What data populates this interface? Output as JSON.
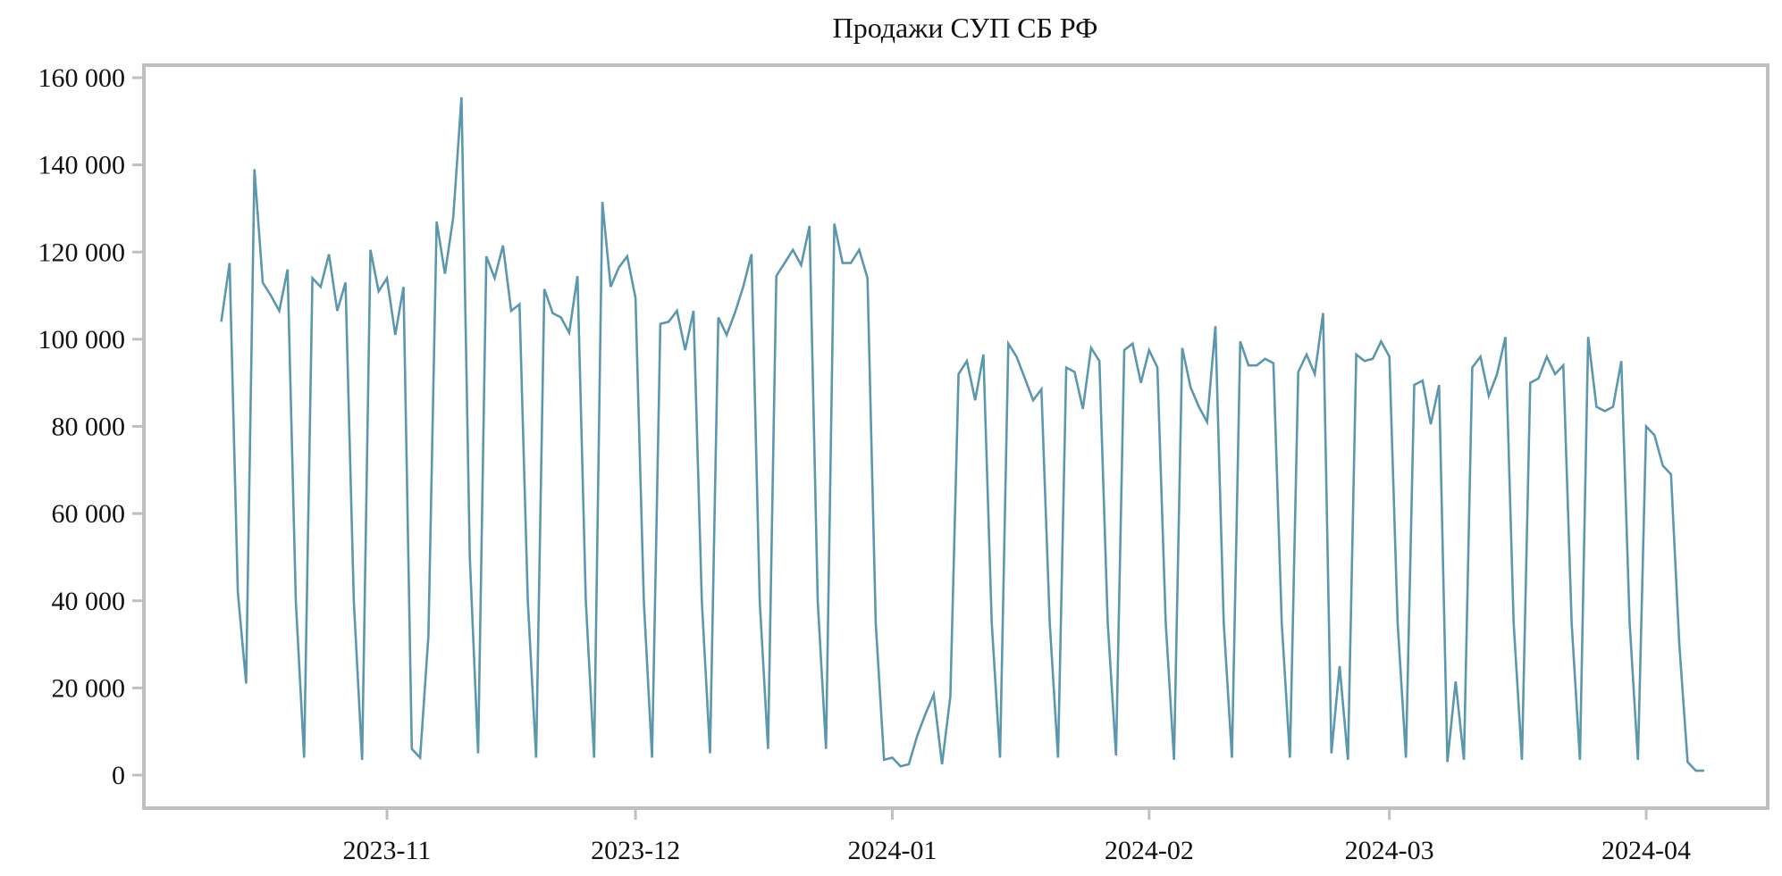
{
  "chart_data": {
    "type": "line",
    "title": "Продажи СУП СБ РФ",
    "xlabel": "",
    "ylabel": "",
    "x_start": "2023-10-12",
    "x_frequency": "daily",
    "x_end": "2024-04-08",
    "ylim": [
      0,
      160000
    ],
    "grid": false,
    "line_color": "#5b97ad",
    "frame_color": "#bfbfbf",
    "y_ticks": [
      {
        "value": 0,
        "label": "0"
      },
      {
        "value": 20000,
        "label": "20 000"
      },
      {
        "value": 40000,
        "label": "40 000"
      },
      {
        "value": 60000,
        "label": "60 000"
      },
      {
        "value": 80000,
        "label": "80 000"
      },
      {
        "value": 100000,
        "label": "100 000"
      },
      {
        "value": 120000,
        "label": "120 000"
      },
      {
        "value": 140000,
        "label": "140 000"
      },
      {
        "value": 160000,
        "label": "160 000"
      }
    ],
    "x_ticks": [
      {
        "date": "2023-11-01",
        "label": "2023-11"
      },
      {
        "date": "2023-12-01",
        "label": "2023-12"
      },
      {
        "date": "2024-01-01",
        "label": "2024-01"
      },
      {
        "date": "2024-02-01",
        "label": "2024-02"
      },
      {
        "date": "2024-03-01",
        "label": "2024-03"
      },
      {
        "date": "2024-04-01",
        "label": "2024-04"
      }
    ],
    "series": [
      {
        "name": "Продажи",
        "values": [
          104000,
          117500,
          42000,
          21000,
          139000,
          113000,
          110000,
          106500,
          116000,
          40000,
          4000,
          114000,
          112000,
          119500,
          106500,
          113000,
          40000,
          3500,
          120500,
          111000,
          114000,
          101000,
          112000,
          6000,
          4000,
          32000,
          127000,
          115000,
          128000,
          155500,
          50000,
          5000,
          119000,
          114000,
          121500,
          106500,
          108000,
          40000,
          4000,
          111500,
          106000,
          105000,
          101500,
          114500,
          40000,
          4000,
          131500,
          112000,
          116500,
          119000,
          109500,
          40000,
          4000,
          103500,
          104000,
          106500,
          97500,
          106500,
          40000,
          5000,
          105000,
          101000,
          106000,
          112000,
          119500,
          40000,
          6000,
          114500,
          117500,
          120500,
          117000,
          126000,
          40000,
          6000,
          126500,
          117500,
          117500,
          120500,
          114000,
          35000,
          3500,
          4000,
          2000,
          2500,
          9000,
          14000,
          18500,
          2500,
          18000,
          92000,
          95000,
          86000,
          96500,
          35000,
          4000,
          99000,
          96000,
          91000,
          86000,
          88500,
          35000,
          4000,
          93500,
          92500,
          84000,
          98000,
          95000,
          35000,
          4500,
          97500,
          99000,
          90000,
          97500,
          93500,
          35000,
          3500,
          98000,
          89000,
          84500,
          81000,
          103000,
          35000,
          4000,
          99500,
          94000,
          94000,
          95500,
          94500,
          35000,
          4000,
          92500,
          96500,
          92000,
          106000,
          5000,
          25000,
          3500,
          96500,
          95000,
          95500,
          99500,
          96000,
          35000,
          4000,
          89500,
          90500,
          80500,
          89500,
          3000,
          21500,
          3500,
          93500,
          96000,
          87000,
          92000,
          100500,
          35000,
          3500,
          90000,
          91000,
          96000,
          92000,
          94000,
          35000,
          3500,
          100500,
          84500,
          83500,
          84500,
          95000,
          35000,
          3500,
          80000,
          78000,
          71000,
          69000,
          30000,
          3000,
          1000,
          1000
        ]
      }
    ]
  }
}
